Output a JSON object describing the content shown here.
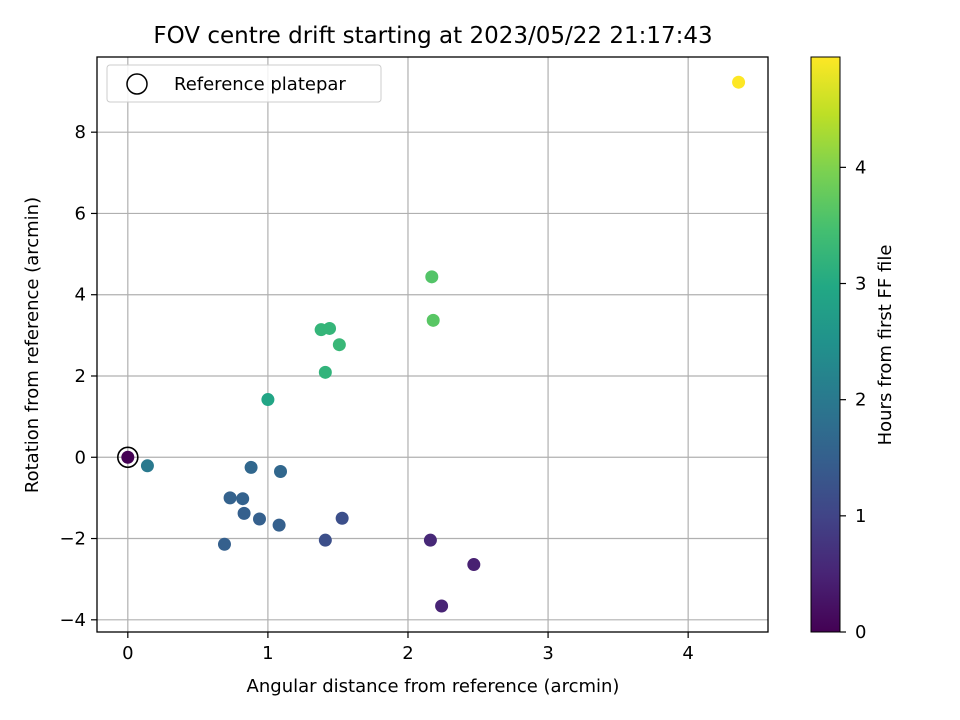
{
  "chart_data": {
    "type": "scatter",
    "title": "FOV centre drift starting at 2023/05/22 21:17:43",
    "xlabel": "Angular distance from reference (arcmin)",
    "ylabel": "Rotation from reference (arcmin)",
    "xlim": [
      -0.22,
      4.57
    ],
    "ylim": [
      -4.3,
      9.85
    ],
    "xticks": [
      0,
      1,
      2,
      3,
      4
    ],
    "yticks": [
      -4,
      -2,
      0,
      2,
      4,
      6,
      8
    ],
    "grid": true,
    "legend": {
      "placement": "top-left",
      "entries": [
        "Reference platepar"
      ]
    },
    "colorbar": {
      "label": "Hours from first FF file",
      "range": [
        0,
        4.95
      ],
      "ticks": [
        0,
        1,
        2,
        3,
        4
      ],
      "colormap": "viridis"
    },
    "reference_point": {
      "x": 0,
      "y": 0,
      "marker": "open circle",
      "edge_color": "#000000"
    },
    "points": [
      {
        "x": 0.0,
        "y": 0.0,
        "c": 0.0
      },
      {
        "x": 2.16,
        "y": -2.04,
        "c": 0.55
      },
      {
        "x": 2.47,
        "y": -2.64,
        "c": 0.45
      },
      {
        "x": 2.24,
        "y": -3.66,
        "c": 0.5
      },
      {
        "x": 1.41,
        "y": -2.04,
        "c": 1.2
      },
      {
        "x": 1.53,
        "y": -1.5,
        "c": 1.2
      },
      {
        "x": 0.69,
        "y": -2.14,
        "c": 1.5
      },
      {
        "x": 0.73,
        "y": -1.0,
        "c": 1.55
      },
      {
        "x": 0.82,
        "y": -1.02,
        "c": 1.55
      },
      {
        "x": 0.83,
        "y": -1.38,
        "c": 1.5
      },
      {
        "x": 0.94,
        "y": -1.52,
        "c": 1.5
      },
      {
        "x": 1.08,
        "y": -1.67,
        "c": 1.5
      },
      {
        "x": 0.88,
        "y": -0.25,
        "c": 1.65
      },
      {
        "x": 1.09,
        "y": -0.35,
        "c": 1.65
      },
      {
        "x": 0.14,
        "y": -0.21,
        "c": 2.0
      },
      {
        "x": 1.0,
        "y": 1.42,
        "c": 2.9
      },
      {
        "x": 1.41,
        "y": 2.09,
        "c": 3.2
      },
      {
        "x": 1.38,
        "y": 3.14,
        "c": 3.25
      },
      {
        "x": 1.44,
        "y": 3.17,
        "c": 3.25
      },
      {
        "x": 1.51,
        "y": 2.77,
        "c": 3.3
      },
      {
        "x": 2.17,
        "y": 4.44,
        "c": 3.6
      },
      {
        "x": 2.18,
        "y": 3.37,
        "c": 3.65
      },
      {
        "x": 4.36,
        "y": 9.23,
        "c": 4.95
      }
    ]
  }
}
